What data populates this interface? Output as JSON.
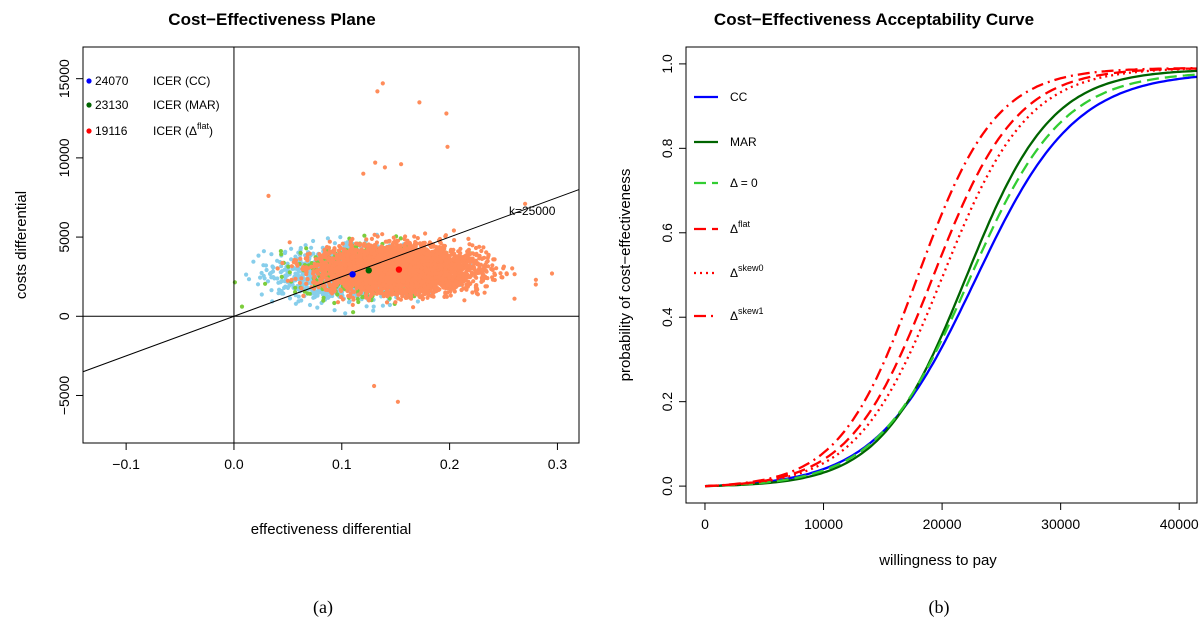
{
  "chart_data": [
    {
      "type": "scatter",
      "title": "Cost−Effectiveness Plane",
      "xlabel": "effectiveness differential",
      "ylabel": "costs differential",
      "xlim": [
        -0.14,
        0.32
      ],
      "ylim": [
        -8000,
        17000
      ],
      "x_ticks": [
        -0.1,
        0.0,
        0.1,
        0.2,
        0.3
      ],
      "x_tick_labels": [
        "−0.1",
        "0.0",
        "0.1",
        "0.2",
        "0.3"
      ],
      "y_ticks": [
        -5000,
        0,
        5000,
        10000,
        15000
      ],
      "y_tick_labels": [
        "−5000",
        "0",
        "5000",
        "10000",
        "15000"
      ],
      "reference_lines": {
        "vertical_x": 0,
        "horizontal_y": 0
      },
      "threshold_line": {
        "label": "k=25000",
        "slope": 25000
      },
      "clouds": [
        {
          "color": "#87ceeb",
          "center": [
            0.11,
            2650
          ],
          "spread": [
            0.034,
            750
          ]
        },
        {
          "color": "#7ccd3c",
          "center": [
            0.125,
            2850
          ],
          "spread": [
            0.03,
            800
          ]
        },
        {
          "color": "#ff8c5a",
          "center": [
            0.153,
            2950
          ],
          "spread": [
            0.034,
            700
          ]
        }
      ],
      "outliers": [
        [
          0.138,
          14700
        ],
        [
          0.133,
          14200
        ],
        [
          0.172,
          13500
        ],
        [
          0.197,
          12800
        ],
        [
          0.198,
          10700
        ],
        [
          0.032,
          7600
        ],
        [
          0.27,
          7100
        ],
        [
          0.131,
          9700
        ],
        [
          0.155,
          9600
        ],
        [
          0.13,
          -4400
        ],
        [
          0.152,
          -5400
        ],
        [
          0.295,
          2700
        ],
        [
          0.28,
          2300
        ],
        [
          0.14,
          9400
        ],
        [
          0.12,
          9000
        ]
      ],
      "icer_points": [
        {
          "value": "24070",
          "label": "ICER (CC)",
          "x": 0.11,
          "y": 2650,
          "color": "#0000ff"
        },
        {
          "value": "23130",
          "label": "ICER (MAR)",
          "x": 0.125,
          "y": 2900,
          "color": "#006400"
        },
        {
          "value": "19116",
          "label_prefix": "ICER (",
          "label_sym": "Δ",
          "label_sup": "flat",
          "label_suffix": ")",
          "x": 0.153,
          "y": 2950,
          "color": "#ff0000"
        }
      ]
    },
    {
      "type": "line",
      "title": "Cost−Effectiveness Acceptability Curve",
      "xlabel": "willingness to pay",
      "ylabel": "probability of cost−effectiveness",
      "xlim": [
        -1600,
        41500
      ],
      "ylim": [
        -0.04,
        1.04
      ],
      "x_ticks": [
        0,
        10000,
        20000,
        30000,
        40000
      ],
      "x_tick_labels": [
        "0",
        "10000",
        "20000",
        "30000",
        "40000"
      ],
      "y_ticks": [
        0.0,
        0.2,
        0.4,
        0.6,
        0.8,
        1.0
      ],
      "y_tick_labels": [
        "0.0",
        "0.2",
        "0.4",
        "0.6",
        "0.8",
        "1.0"
      ],
      "series": [
        {
          "name": "CC",
          "color": "#0000ff",
          "dash": "",
          "midpoint": 22800,
          "scale": 4200,
          "top": 0.985
        },
        {
          "name": "MAR",
          "color": "#006400",
          "dash": "",
          "midpoint": 22000,
          "scale": 3600,
          "top": 0.99
        },
        {
          "name_sym": "Δ",
          "name_rest": " = 0",
          "color": "#32cd32",
          "dash": "12 6",
          "midpoint": 22300,
          "scale": 3900,
          "top": 0.985
        },
        {
          "name_sym": "Δ",
          "name_sup": "flat",
          "color": "#ff0000",
          "dash": "12 6",
          "midpoint": 19200,
          "scale": 3500,
          "top": 0.995
        },
        {
          "name_sym": "Δ",
          "name_sup": "skew0",
          "color": "#ff0000",
          "dash": "2 4",
          "midpoint": 20000,
          "scale": 3600,
          "top": 0.995
        },
        {
          "name_sym": "Δ",
          "name_sup": "skew1",
          "color": "#ff0000",
          "dash": "12 5 2 5",
          "midpoint": 17900,
          "scale": 3300,
          "top": 0.995
        }
      ]
    }
  ],
  "captions": [
    "(a)",
    "(b)"
  ]
}
